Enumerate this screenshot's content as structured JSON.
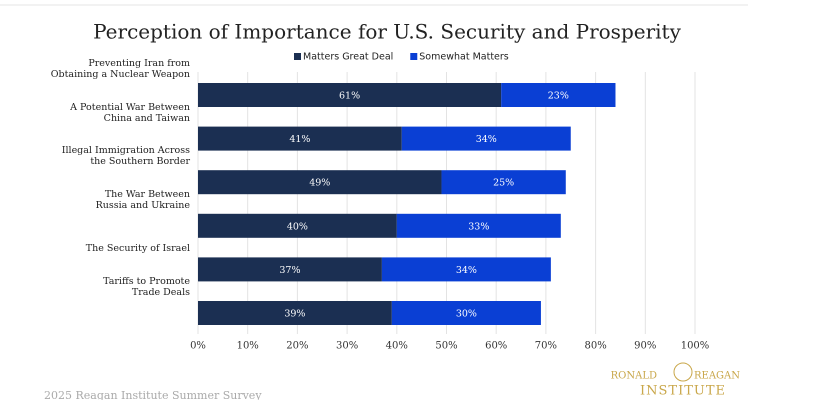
{
  "chart_data": {
    "type": "stacked_barh",
    "title": "Perception of Importance for U.S. Security and Prosperity",
    "categories": [
      "Preventing Iran from\nObtaining a Nuclear Weapon",
      "A Potential War Between\nChina and Taiwan",
      "Illegal Immigration Across\nthe Southern Border",
      "The War Between\nRussia and Ukraine",
      "The Security of Israel",
      "Tariffs to Promote\nTrade Deals"
    ],
    "series": [
      {
        "name": "Matters Great Deal",
        "color": "#1b2f52",
        "values": [
          61,
          41,
          49,
          40,
          37,
          39
        ],
        "value_labels": [
          "61%",
          "41%",
          "49%",
          "40%",
          "37%",
          "39%"
        ]
      },
      {
        "name": "Somewhat Matters",
        "color": "#0a3fd4",
        "values": [
          23,
          34,
          25,
          33,
          34,
          30
        ],
        "value_labels": [
          "23%",
          "34%",
          "25%",
          "33%",
          "34%",
          "30%"
        ]
      }
    ],
    "xlim": [
      0,
      100
    ],
    "xticks": [
      {
        "value": 0,
        "label": "0%"
      },
      {
        "value": 10,
        "label": "10%"
      },
      {
        "value": 20,
        "label": "20%"
      },
      {
        "value": 30,
        "label": "30%"
      },
      {
        "value": 40,
        "label": "40%"
      },
      {
        "value": 50,
        "label": "50%"
      },
      {
        "value": 60,
        "label": "60%"
      },
      {
        "value": 70,
        "label": "70%"
      },
      {
        "value": 80,
        "label": "80%"
      },
      {
        "value": 90,
        "label": "90%"
      },
      {
        "value": 100,
        "label": "100%"
      }
    ],
    "grid": true,
    "legend": "top"
  },
  "footer": "2025 Reagan Institute Summer Survey",
  "logo": {
    "line1": "RONALD",
    "line2": "REAGAN",
    "line3": "INSTITUTE"
  }
}
